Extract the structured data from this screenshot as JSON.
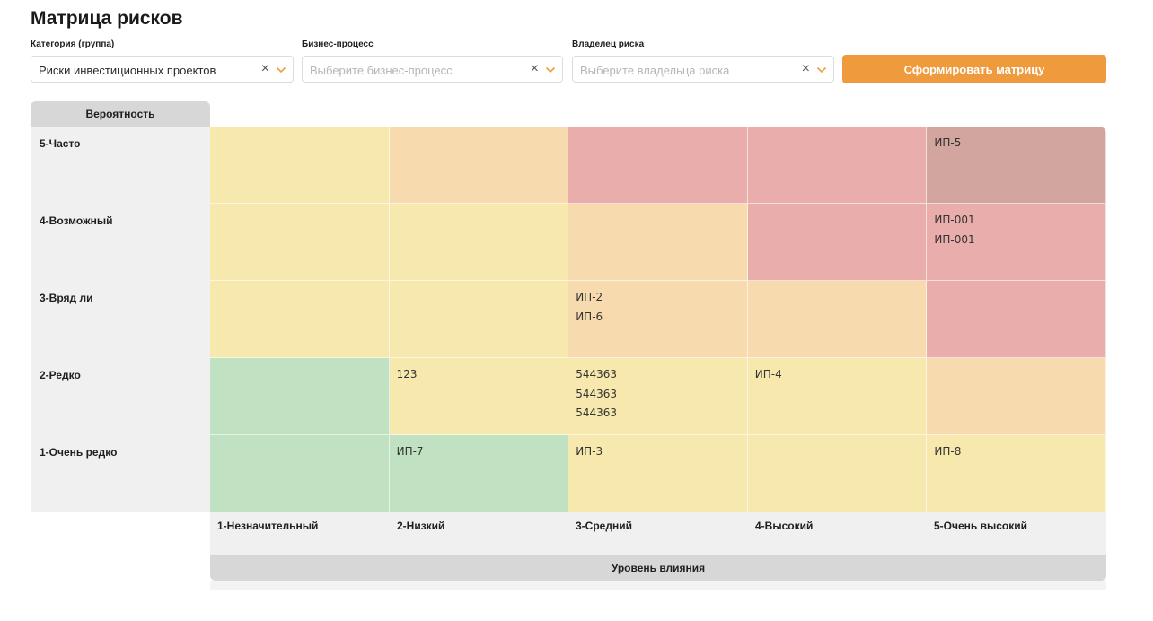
{
  "page": {
    "title": "Матрица рисков"
  },
  "filters": {
    "category": {
      "label": "Категория (группа)",
      "value": "Риски инвестиционных проектов",
      "placeholder": ""
    },
    "process": {
      "label": "Бизнес-процесс",
      "value": "",
      "placeholder": "Выберите бизнес-процесс"
    },
    "owner": {
      "label": "Владелец риска",
      "value": "",
      "placeholder": "Выберите владельца риска"
    },
    "clear_icon": "close-icon",
    "dropdown_icon": "chevron-down-icon"
  },
  "actions": {
    "generate_label": "Сформировать матрицу"
  },
  "matrix": {
    "probability_title": "Вероятность",
    "impact_title": "Уровень влияния",
    "rows": [
      "5-Часто",
      "4-Возможный",
      "3-Вряд ли",
      "2-Редко",
      "1-Очень редко"
    ],
    "columns": [
      "1-Незначительный",
      "2-Низкий",
      "3-Средний",
      "4-Высокий",
      "5-Очень высокий"
    ],
    "colors": {
      "green": "#c0e1c2",
      "yellow": "#f7e8ae",
      "orange": "#f7dbae",
      "red": "#e9aeab",
      "critical": "#d2a59f"
    },
    "cells": [
      [
        {
          "color": "yellow",
          "items": []
        },
        {
          "color": "orange",
          "items": []
        },
        {
          "color": "red",
          "items": []
        },
        {
          "color": "red",
          "items": []
        },
        {
          "color": "critical",
          "items": [
            "ИП-5"
          ]
        }
      ],
      [
        {
          "color": "yellow",
          "items": []
        },
        {
          "color": "yellow",
          "items": []
        },
        {
          "color": "orange",
          "items": []
        },
        {
          "color": "red",
          "items": []
        },
        {
          "color": "red",
          "items": [
            "ИП-001",
            "ИП-001"
          ]
        }
      ],
      [
        {
          "color": "yellow",
          "items": []
        },
        {
          "color": "yellow",
          "items": []
        },
        {
          "color": "orange",
          "items": [
            "ИП-2",
            "ИП-6"
          ]
        },
        {
          "color": "orange",
          "items": []
        },
        {
          "color": "red",
          "items": []
        }
      ],
      [
        {
          "color": "green",
          "items": []
        },
        {
          "color": "yellow",
          "items": [
            "123"
          ]
        },
        {
          "color": "yellow",
          "items": [
            "544363",
            "544363",
            "544363"
          ]
        },
        {
          "color": "yellow",
          "items": [
            "ИП-4"
          ]
        },
        {
          "color": "orange",
          "items": []
        }
      ],
      [
        {
          "color": "green",
          "items": []
        },
        {
          "color": "green",
          "items": [
            "ИП-7"
          ]
        },
        {
          "color": "yellow",
          "items": [
            "ИП-3"
          ]
        },
        {
          "color": "yellow",
          "items": []
        },
        {
          "color": "yellow",
          "items": [
            "ИП-8"
          ]
        }
      ]
    ]
  }
}
